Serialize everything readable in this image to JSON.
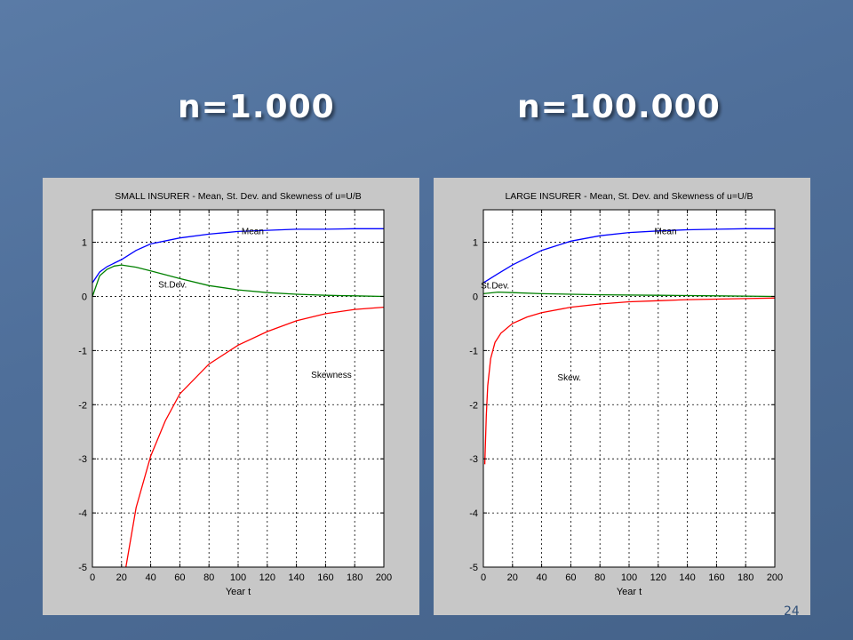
{
  "slide": {
    "heading_left": "n=1.000",
    "heading_right": "n=100.000",
    "number": "24"
  },
  "colors": {
    "mean": "#0000ff",
    "stdev": "#008000",
    "skewness": "#ff0000",
    "panel_background": "#c7c7c7",
    "plot_background": "#ffffff"
  },
  "chart_data": [
    {
      "type": "line",
      "title": "SMALL INSURER    -    Mean, St. Dev. and Skewness of  u=U/B",
      "xlabel": "Year t",
      "ylabel": "",
      "xlim": [
        0,
        200
      ],
      "ylim": [
        -5,
        1.6
      ],
      "xticks": [
        0,
        20,
        40,
        60,
        80,
        100,
        120,
        140,
        160,
        180,
        200
      ],
      "yticks": [
        -5,
        -4,
        -3,
        -2,
        -1,
        0,
        1
      ],
      "grid": true,
      "series": [
        {
          "name": "Mean",
          "label_at": [
            110,
            1.15
          ],
          "x": [
            0,
            5,
            10,
            20,
            30,
            40,
            60,
            80,
            100,
            120,
            140,
            160,
            180,
            200
          ],
          "values": [
            0.25,
            0.45,
            0.55,
            0.68,
            0.85,
            0.97,
            1.08,
            1.15,
            1.2,
            1.22,
            1.24,
            1.24,
            1.25,
            1.25
          ]
        },
        {
          "name": "St.Dev.",
          "label_at": [
            55,
            0.16
          ],
          "x": [
            0,
            5,
            10,
            15,
            20,
            30,
            40,
            60,
            80,
            100,
            120,
            140,
            160,
            180,
            200
          ],
          "values": [
            0.0,
            0.38,
            0.5,
            0.56,
            0.58,
            0.54,
            0.47,
            0.33,
            0.2,
            0.12,
            0.07,
            0.04,
            0.02,
            0.01,
            0.0
          ]
        },
        {
          "name": "Skewness",
          "label_at": [
            164,
            -1.5
          ],
          "x": [
            23,
            30,
            40,
            50,
            60,
            80,
            100,
            120,
            140,
            160,
            180,
            200
          ],
          "values": [
            -5.0,
            -3.9,
            -2.95,
            -2.3,
            -1.8,
            -1.25,
            -0.9,
            -0.65,
            -0.45,
            -0.32,
            -0.24,
            -0.2
          ]
        }
      ]
    },
    {
      "type": "line",
      "title": "LARGE INSURER    -    Mean, St. Dev. and Skewness of  u=U/B",
      "xlabel": "Year t",
      "ylabel": "",
      "xlim": [
        0,
        200
      ],
      "ylim": [
        -5,
        1.6
      ],
      "xticks": [
        0,
        20,
        40,
        60,
        80,
        100,
        120,
        140,
        160,
        180,
        200
      ],
      "yticks": [
        -5,
        -4,
        -3,
        -2,
        -1,
        0,
        1
      ],
      "grid": true,
      "series": [
        {
          "name": "Mean",
          "label_at": [
            125,
            1.15
          ],
          "x": [
            0,
            10,
            20,
            40,
            60,
            80,
            100,
            120,
            140,
            160,
            180,
            200
          ],
          "values": [
            0.25,
            0.42,
            0.58,
            0.85,
            1.02,
            1.12,
            1.18,
            1.21,
            1.23,
            1.24,
            1.25,
            1.25
          ]
        },
        {
          "name": "St.Dev.",
          "label_at": [
            8,
            0.15
          ],
          "x": [
            0,
            10,
            20,
            40,
            80,
            120,
            160,
            200
          ],
          "values": [
            0.05,
            0.08,
            0.07,
            0.05,
            0.03,
            0.02,
            0.01,
            0.0
          ]
        },
        {
          "name": "Skew.",
          "label_at": [
            59,
            -1.55
          ],
          "x": [
            1,
            2,
            3,
            5,
            8,
            12,
            20,
            30,
            40,
            60,
            80,
            100,
            120,
            140,
            160,
            180,
            200
          ],
          "values": [
            -3.1,
            -2.2,
            -1.65,
            -1.15,
            -0.85,
            -0.68,
            -0.5,
            -0.38,
            -0.3,
            -0.2,
            -0.14,
            -0.1,
            -0.08,
            -0.06,
            -0.05,
            -0.04,
            -0.03
          ]
        }
      ]
    }
  ]
}
